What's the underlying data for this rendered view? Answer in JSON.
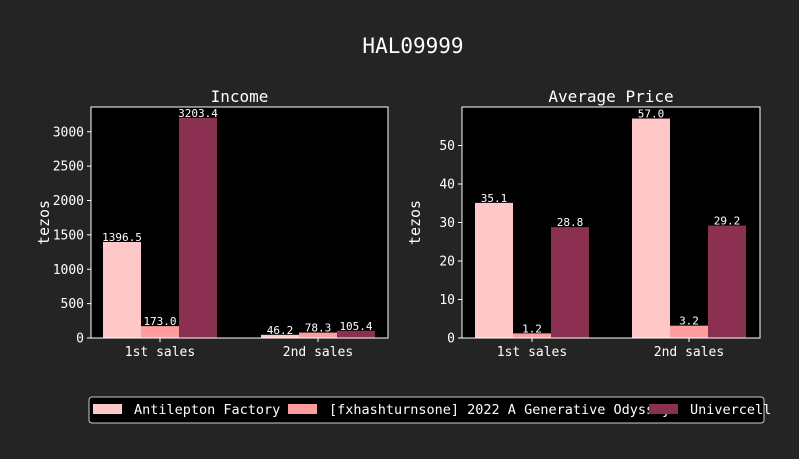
{
  "figure": {
    "title": "HAL09999",
    "background": "#242424"
  },
  "chart_data": [
    {
      "type": "bar",
      "title": "Income",
      "xlabel": "",
      "ylabel": "tezos",
      "categories": [
        "1st sales",
        "2nd sales"
      ],
      "ylim": [
        0,
        3360
      ],
      "yticks": [
        0,
        500,
        1000,
        1500,
        2000,
        2500,
        3000
      ],
      "grid": false,
      "series": [
        {
          "name": "Antilepton Factory",
          "values": [
            1396.5,
            46.2
          ],
          "labels": [
            "1396.5",
            "46.2"
          ],
          "color": "#ffc8c8"
        },
        {
          "name": "[fxhashturnsone] 2022 A Generative Odyssey",
          "values": [
            173.0,
            78.3
          ],
          "labels": [
            "173.0",
            "78.3"
          ],
          "color": "#ff9c9c"
        },
        {
          "name": "Univercell",
          "values": [
            3203.4,
            105.4
          ],
          "labels": [
            "3203.4",
            "105.4"
          ],
          "color": "#8b3050"
        }
      ]
    },
    {
      "type": "bar",
      "title": "Average Price",
      "xlabel": "",
      "ylabel": "tezos",
      "categories": [
        "1st sales",
        "2nd sales"
      ],
      "ylim": [
        0,
        60
      ],
      "yticks": [
        0,
        10,
        20,
        30,
        40,
        50
      ],
      "grid": false,
      "series": [
        {
          "name": "Antilepton Factory",
          "values": [
            35.1,
            57.0
          ],
          "labels": [
            "35.1",
            "57.0"
          ],
          "color": "#ffc8c8"
        },
        {
          "name": "[fxhashturnsone] 2022 A Generative Odyssey",
          "values": [
            1.2,
            3.2
          ],
          "labels": [
            "1.2",
            "3.2"
          ],
          "color": "#ff9c9c"
        },
        {
          "name": "Univercell",
          "values": [
            28.8,
            29.2
          ],
          "labels": [
            "28.8",
            "29.2"
          ],
          "color": "#8b3050"
        }
      ]
    }
  ],
  "legend": {
    "placement": "bottom",
    "items": [
      "Antilepton Factory",
      "[fxhashturnsone] 2022 A Generative Odyssey",
      "Univercell"
    ]
  }
}
